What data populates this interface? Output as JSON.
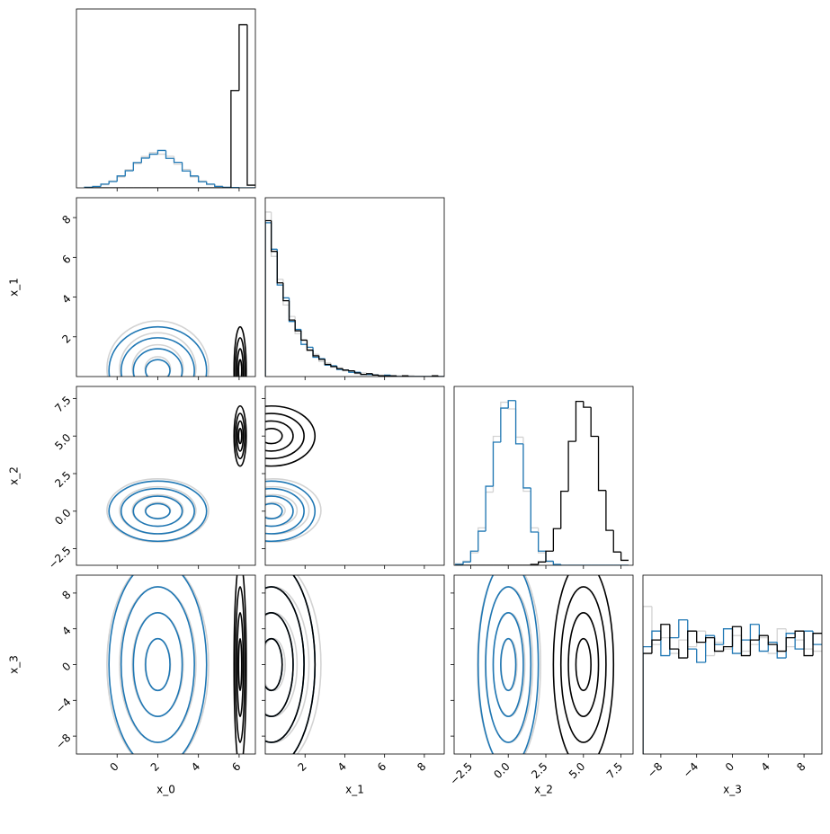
{
  "chart_data": {
    "type": "corner",
    "labels": [
      "x_0",
      "x_1",
      "x_2",
      "x_3"
    ],
    "lims": [
      [
        -2,
        6.8
      ],
      [
        0,
        9
      ],
      [
        -3.6,
        8.3
      ],
      [
        -10,
        10
      ]
    ],
    "ticks": [
      [
        0,
        2,
        4,
        6
      ],
      [
        2,
        4,
        6,
        8
      ],
      [
        {
          "value": -2.5,
          "label": "−2.5"
        },
        {
          "value": 0,
          "label": "0.0"
        },
        2.5,
        {
          "value": 5,
          "label": "5.0"
        },
        7.5
      ],
      [
        {
          "value": -8,
          "label": "−8"
        },
        {
          "value": -4,
          "label": "−4"
        },
        0,
        4,
        8
      ]
    ],
    "hist_ylim": [
      [
        0,
        680
      ],
      [
        0,
        250
      ],
      [
        0,
        215
      ],
      [
        0,
        80
      ]
    ],
    "levels": [
      0.5,
      1,
      1.5,
      2
    ],
    "bins": [
      [
        -1.6,
        -1.2,
        -0.8,
        -0.4,
        0,
        0.4,
        0.8,
        1.2,
        1.6,
        2,
        2.4,
        2.8,
        3.2,
        3.6,
        4,
        4.4,
        4.8,
        5.2,
        5.6,
        6,
        6.4,
        6.8
      ],
      [
        0,
        0.3,
        0.6,
        0.9,
        1.2,
        1.5,
        1.8,
        2.1,
        2.4,
        2.7,
        3,
        3.3,
        3.6,
        3.9,
        4.2,
        4.5,
        4.8,
        5.1,
        5.4,
        5.7,
        6,
        6.3,
        6.6,
        6.9,
        7.2,
        7.5,
        7.8,
        8.1,
        8.4,
        8.7,
        9
      ],
      [
        -3.5,
        -3,
        -2.5,
        -2,
        -1.5,
        -1,
        -0.5,
        0,
        0.5,
        1,
        1.5,
        2,
        2.5,
        3,
        3.5,
        4,
        4.5,
        5,
        5.5,
        6,
        6.5,
        7,
        7.5,
        8
      ],
      [
        -10,
        -9,
        -8,
        -7,
        -6,
        -5,
        -4,
        -3,
        -2,
        -1,
        0,
        1,
        2,
        3,
        4,
        5,
        6,
        7,
        8,
        9,
        10
      ]
    ],
    "series": [
      {
        "color": "#d3d3d3",
        "center": [
          2,
          0.4,
          0.05,
          0
        ],
        "spread": [
          1.25,
          1.2,
          1.05,
          5.8
        ],
        "counts": [
          [
            3,
            6,
            12,
            26,
            41,
            69,
            92,
            119,
            134,
            128,
            120,
            90,
            70,
            41,
            26,
            12,
            7,
            2,
            0,
            0,
            0
          ],
          [
            230,
            168,
            136,
            100,
            84,
            60,
            50,
            36,
            31,
            21,
            19,
            13,
            12,
            8,
            7,
            4,
            5,
            2,
            3,
            2,
            1,
            0,
            1,
            0,
            1,
            0,
            0,
            0,
            0,
            0
          ],
          [
            2,
            5,
            15,
            45,
            88,
            155,
            196,
            188,
            154,
            89,
            45,
            15,
            4,
            1,
            0,
            0,
            0,
            0,
            0,
            0,
            0,
            0,
            0
          ],
          [
            66,
            49,
            52,
            45,
            51,
            48,
            55,
            44,
            50,
            47,
            53,
            46,
            49,
            52,
            45,
            56,
            48,
            51,
            47,
            46
          ]
        ]
      },
      {
        "color": "#1f77b4",
        "center": [
          2,
          0.3,
          0,
          0
        ],
        "spread": [
          1.2,
          1.1,
          1,
          5.8
        ],
        "counts": [
          [
            2,
            5,
            14,
            24,
            45,
            65,
            96,
            113,
            128,
            142,
            112,
            97,
            64,
            45,
            23,
            14,
            5,
            2,
            1,
            0,
            0
          ],
          [
            215,
            178,
            128,
            110,
            77,
            66,
            45,
            41,
            27,
            25,
            16,
            15,
            10,
            9,
            6,
            6,
            3,
            3,
            2,
            1,
            2,
            1,
            0,
            1,
            0,
            0,
            0,
            0,
            0,
            0
          ],
          [
            1,
            4,
            17,
            41,
            95,
            148,
            189,
            198,
            146,
            93,
            40,
            17,
            5,
            1,
            0,
            0,
            0,
            0,
            0,
            0,
            0,
            0,
            0
          ],
          [
            48,
            55,
            44,
            52,
            60,
            47,
            41,
            53,
            49,
            56,
            45,
            51,
            58,
            46,
            50,
            43,
            54,
            47,
            55,
            49
          ]
        ]
      },
      {
        "color": "#000000",
        "center": [
          6.05,
          0.3,
          5,
          0
        ],
        "spread": [
          0.15,
          1.1,
          1,
          5.8
        ],
        "counts": [
          [
            0,
            0,
            0,
            0,
            0,
            0,
            0,
            0,
            0,
            0,
            0,
            0,
            0,
            0,
            0,
            0,
            0,
            0,
            370,
            620,
            10
          ],
          [
            218,
            175,
            131,
            106,
            79,
            64,
            51,
            37,
            29,
            24,
            17,
            14,
            11,
            9,
            8,
            5,
            3,
            4,
            2,
            1,
            1,
            1,
            0,
            1,
            0,
            0,
            0,
            0,
            1,
            0
          ],
          [
            0,
            0,
            0,
            0,
            0,
            0,
            0,
            0,
            0,
            0,
            1,
            4,
            17,
            44,
            89,
            149,
            197,
            190,
            155,
            90,
            42,
            16,
            6
          ],
          [
            45,
            51,
            58,
            47,
            43,
            55,
            50,
            52,
            46,
            48,
            57,
            44,
            51,
            53,
            49,
            46,
            52,
            55,
            44,
            54
          ]
        ]
      }
    ]
  }
}
